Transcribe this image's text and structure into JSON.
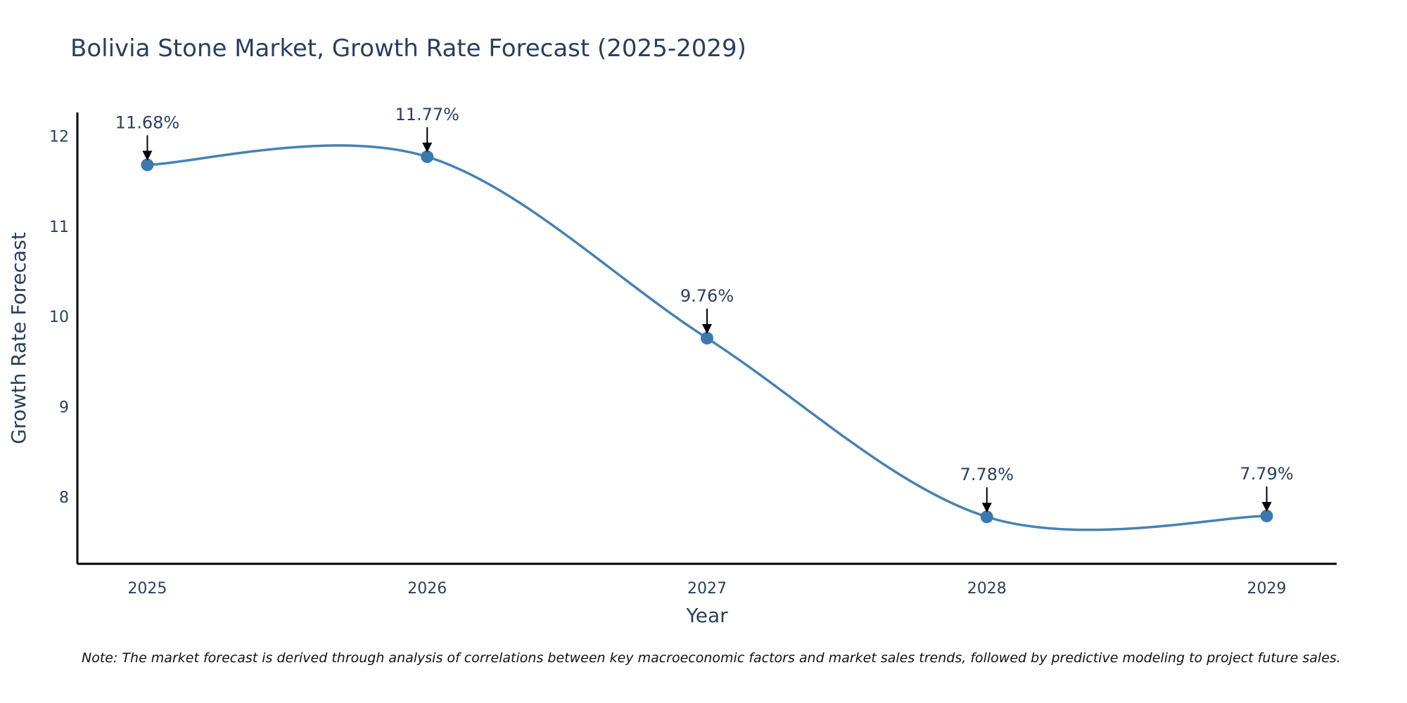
{
  "chart_data": {
    "type": "line",
    "title": "Bolivia Stone Market, Growth Rate Forecast (2025-2029)",
    "xlabel": "Year",
    "ylabel": "Growth Rate Forecast",
    "categories": [
      "2025",
      "2026",
      "2027",
      "2028",
      "2029"
    ],
    "series": [
      {
        "name": "Growth Rate Forecast",
        "values": [
          11.68,
          11.77,
          9.76,
          7.78,
          7.79
        ],
        "labels": [
          "11.68%",
          "11.77%",
          "9.76%",
          "7.78%",
          "7.79%"
        ]
      }
    ],
    "x_range": [
      2024.75,
      2029.25
    ],
    "ylim": [
      7.26,
      12.26
    ],
    "y_ticks": [
      8,
      9,
      10,
      11,
      12
    ],
    "grid": false,
    "line_color": "#4682b4",
    "marker_color": "#3a78ad",
    "axis_color": "#000000",
    "note": "Note: The market forecast is derived through analysis of correlations between key macroeconomic factors and market sales trends, followed by predictive modeling to project future sales."
  }
}
